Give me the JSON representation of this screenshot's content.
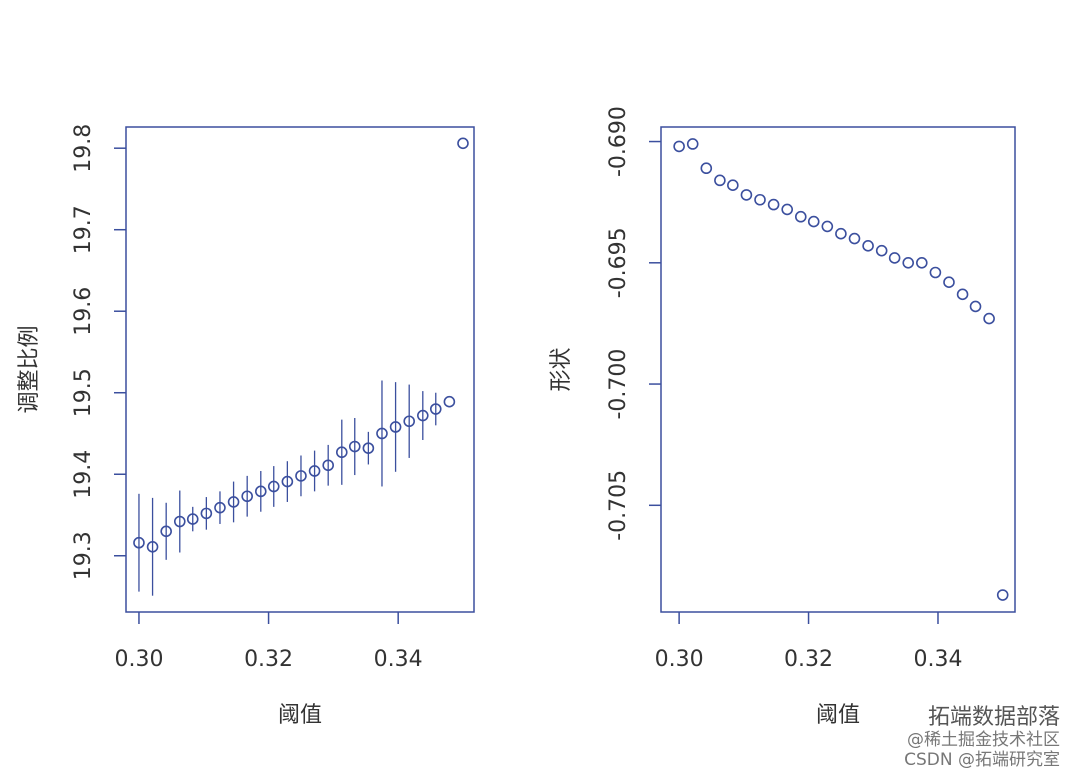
{
  "chart_data": [
    {
      "type": "scatter",
      "xlabel": "阈值",
      "ylabel": "调整比例",
      "color": "#3b4f9e",
      "xlim": [
        0.298,
        0.3517
      ],
      "ylim": [
        19.231,
        19.826
      ],
      "xticks": [
        {
          "value": 0.3,
          "label": "0.30"
        },
        {
          "value": 0.32,
          "label": "0.32"
        },
        {
          "value": 0.34,
          "label": "0.34"
        }
      ],
      "yticks": [
        {
          "value": 19.3,
          "label": "19.3"
        },
        19.4,
        19.5,
        19.6,
        19.7,
        19.8
      ],
      "x": [
        0.3,
        0.3021,
        0.3042,
        0.3063,
        0.3083,
        0.3104,
        0.3125,
        0.3146,
        0.3167,
        0.3188,
        0.3208,
        0.3229,
        0.325,
        0.3271,
        0.3292,
        0.3313,
        0.3333,
        0.3354,
        0.3375,
        0.3396,
        0.3417,
        0.3438,
        0.3458,
        0.3479,
        0.35
      ],
      "values": [
        19.316,
        19.311,
        19.33,
        19.342,
        19.345,
        19.352,
        19.359,
        19.366,
        19.373,
        19.379,
        19.385,
        19.391,
        19.398,
        19.404,
        19.411,
        19.427,
        19.434,
        19.432,
        19.45,
        19.458,
        19.465,
        19.472,
        19.48,
        19.489,
        19.806
      ],
      "errors": [
        0.06,
        0.06,
        0.035,
        0.038,
        0.015,
        0.02,
        0.02,
        0.025,
        0.025,
        0.025,
        0.025,
        0.025,
        0.025,
        0.025,
        0.025,
        0.04,
        0.035,
        0.02,
        0.065,
        0.055,
        0.045,
        0.03,
        0.02,
        null,
        null
      ]
    },
    {
      "type": "scatter",
      "xlabel": "阈值",
      "ylabel": "形状",
      "color": "#3b4f9e",
      "xlim": [
        0.2972,
        0.3519
      ],
      "ylim": [
        -0.7094,
        -0.6894
      ],
      "xticks": [
        {
          "value": 0.3,
          "label": "0.30"
        },
        {
          "value": 0.32,
          "label": "0.32"
        },
        {
          "value": 0.34,
          "label": "0.34"
        }
      ],
      "yticks": [
        {
          "value": -0.69,
          "label": "-0.690"
        },
        -0.695,
        {
          "value": -0.7,
          "label": "-0.700"
        },
        -0.705
      ],
      "x": [
        0.3,
        0.3021,
        0.3042,
        0.3063,
        0.3083,
        0.3104,
        0.3125,
        0.3146,
        0.3167,
        0.3188,
        0.3208,
        0.3229,
        0.325,
        0.3271,
        0.3292,
        0.3313,
        0.3333,
        0.3354,
        0.3375,
        0.3396,
        0.3417,
        0.3438,
        0.3458,
        0.3479,
        0.35
      ],
      "values": [
        -0.6902,
        -0.6901,
        -0.6911,
        -0.6916,
        -0.6918,
        -0.6922,
        -0.6924,
        -0.6926,
        -0.6928,
        -0.6931,
        -0.6933,
        -0.6935,
        -0.6938,
        -0.694,
        -0.6943,
        -0.6945,
        -0.6948,
        -0.695,
        -0.695,
        -0.6954,
        -0.6958,
        -0.6963,
        -0.6968,
        -0.6973,
        -0.7087
      ]
    }
  ],
  "watermarks": [
    "拓端数据部落",
    "@稀土掘金技术社区",
    "CSDN @拓端研究室"
  ]
}
